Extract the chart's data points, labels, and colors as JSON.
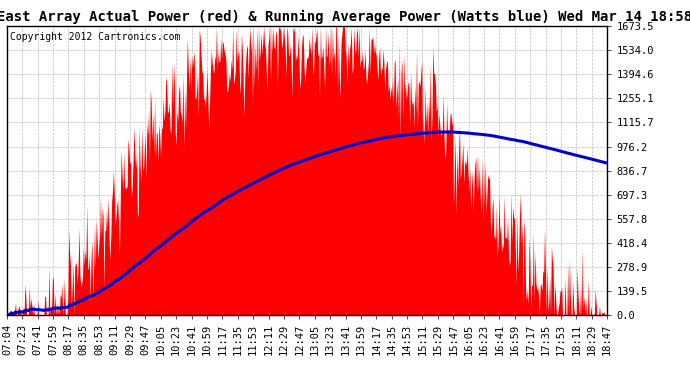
{
  "title": "East Array Actual Power (red) & Running Average Power (Watts blue) Wed Mar 14 18:58",
  "copyright": "Copyright 2012 Cartronics.com",
  "yticks": [
    0.0,
    139.5,
    278.9,
    418.4,
    557.8,
    697.3,
    836.7,
    976.2,
    1115.7,
    1255.1,
    1394.6,
    1534.0,
    1673.5
  ],
  "ymax": 1673.5,
  "ymin": 0.0,
  "xtick_labels": [
    "07:04",
    "07:23",
    "07:41",
    "07:59",
    "08:17",
    "08:35",
    "08:53",
    "09:11",
    "09:29",
    "09:47",
    "10:05",
    "10:23",
    "10:41",
    "10:59",
    "11:17",
    "11:35",
    "11:53",
    "12:11",
    "12:29",
    "12:47",
    "13:05",
    "13:23",
    "13:41",
    "13:59",
    "14:17",
    "14:35",
    "14:53",
    "15:11",
    "15:29",
    "15:47",
    "16:05",
    "16:23",
    "16:41",
    "16:59",
    "17:17",
    "17:35",
    "17:53",
    "18:11",
    "18:29",
    "18:47"
  ],
  "actual_color": "#FF0000",
  "average_color": "#0000CC",
  "background_color": "#FFFFFF",
  "grid_color": "#BBBBBB",
  "title_fontsize": 10,
  "copyright_fontsize": 7,
  "tick_fontsize": 7.5
}
